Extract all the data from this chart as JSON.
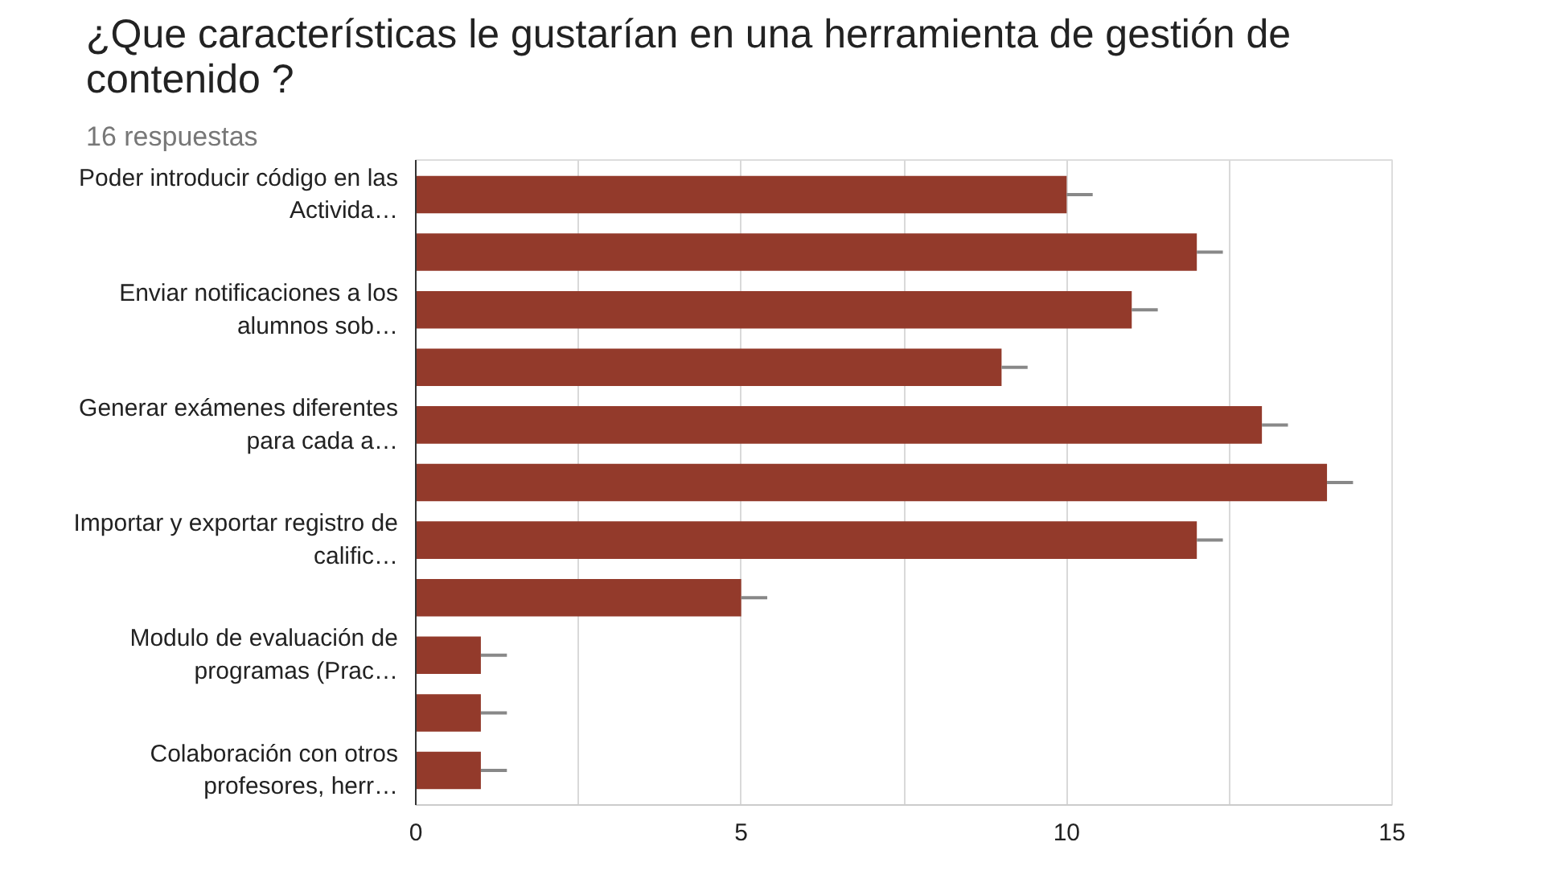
{
  "chart_data": {
    "type": "bar",
    "orientation": "horizontal",
    "title": "¿Que características le gustarían en una herramienta de gestión de\ncontenido ?",
    "subtitle": "16 respuestas",
    "categories": [
      "Poder introducir código en las\nActivida…",
      null,
      "Enviar notificaciones a los\nalumnos sob…",
      null,
      "Generar exámenes diferentes\npara cada a…",
      null,
      "Importar y exportar registro de\ncalific…",
      null,
      "Modulo de evaluación de\nprogramas (Prac…",
      null,
      "Colaboración con otros\nprofesores, herr…"
    ],
    "values": [
      10,
      12,
      11,
      9,
      13,
      14,
      12,
      5,
      1,
      1,
      1
    ],
    "errors": [
      [
        10,
        10.4
      ],
      [
        12,
        12.4
      ],
      [
        11,
        11.4
      ],
      [
        9,
        9.4
      ],
      [
        13,
        13.4
      ],
      [
        14,
        14.4
      ],
      [
        12,
        12.4
      ],
      [
        5,
        5.4
      ],
      [
        1,
        1.4
      ],
      [
        1,
        1.4
      ],
      [
        1,
        1.4
      ]
    ],
    "color": "#933a2b",
    "xlim": [
      0,
      15
    ],
    "xticks": [
      0,
      {
        "value": 2.5,
        "label": null
      },
      5,
      {
        "value": 7.5,
        "label": null
      },
      10,
      {
        "value": 12.5,
        "label": null
      },
      15
    ],
    "grid": "x"
  }
}
